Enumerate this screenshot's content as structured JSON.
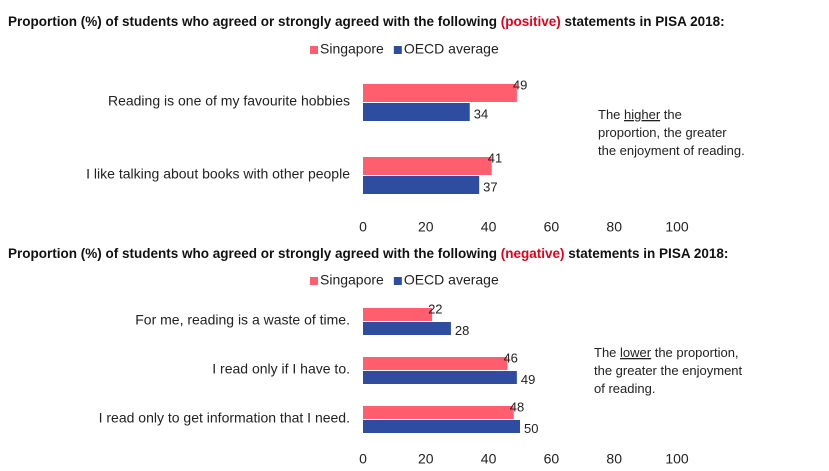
{
  "chart_data": [
    {
      "type": "bar",
      "orientation": "horizontal",
      "title": [
        {
          "text": "Proportion (%) of students who agreed or strongly agreed with the following "
        },
        {
          "text": "(positive)",
          "color": "#e3001b"
        },
        {
          "text": " statements in PISA 2018:"
        }
      ],
      "categories": [
        "Reading is one of my favourite hobbies",
        "I like talking about books with other people"
      ],
      "series": [
        {
          "name": "Singapore",
          "color": "#ff5e6e",
          "values": [
            49,
            41
          ]
        },
        {
          "name": "OECD average",
          "color": "#2f4da0",
          "values": [
            34,
            37
          ]
        }
      ],
      "xlim": [
        0,
        100
      ],
      "xticks": [
        0,
        20,
        40,
        60,
        80,
        100
      ],
      "annotation": [
        [
          {
            "text": "The "
          },
          {
            "text": "higher",
            "underline": true
          },
          {
            "text": " the"
          }
        ],
        [
          {
            "text": "proportion, the greater"
          }
        ],
        [
          {
            "text": "the enjoyment of reading."
          }
        ]
      ]
    },
    {
      "type": "bar",
      "orientation": "horizontal",
      "title": [
        {
          "text": "Proportion (%) of students who agreed or strongly agreed with the following "
        },
        {
          "text": "(negative)",
          "color": "#e3001b"
        },
        {
          "text": " statements in PISA 2018:"
        }
      ],
      "categories": [
        "For me, reading is a waste of time.",
        "I read only if I have to.",
        "I read only to get information that I need."
      ],
      "series": [
        {
          "name": "Singapore",
          "color": "#ff5e6e",
          "values": [
            22,
            46,
            48
          ]
        },
        {
          "name": "OECD average",
          "color": "#2f4da0",
          "values": [
            28,
            49,
            50
          ]
        }
      ],
      "xlim": [
        0,
        100
      ],
      "xticks": [
        0,
        20,
        40,
        60,
        80,
        100
      ],
      "annotation": [
        [
          {
            "text": "The "
          },
          {
            "text": "lower",
            "underline": true
          },
          {
            "text": " the proportion,"
          }
        ],
        [
          {
            "text": "the greater the enjoyment"
          }
        ],
        [
          {
            "text": "of reading."
          }
        ]
      ]
    }
  ]
}
